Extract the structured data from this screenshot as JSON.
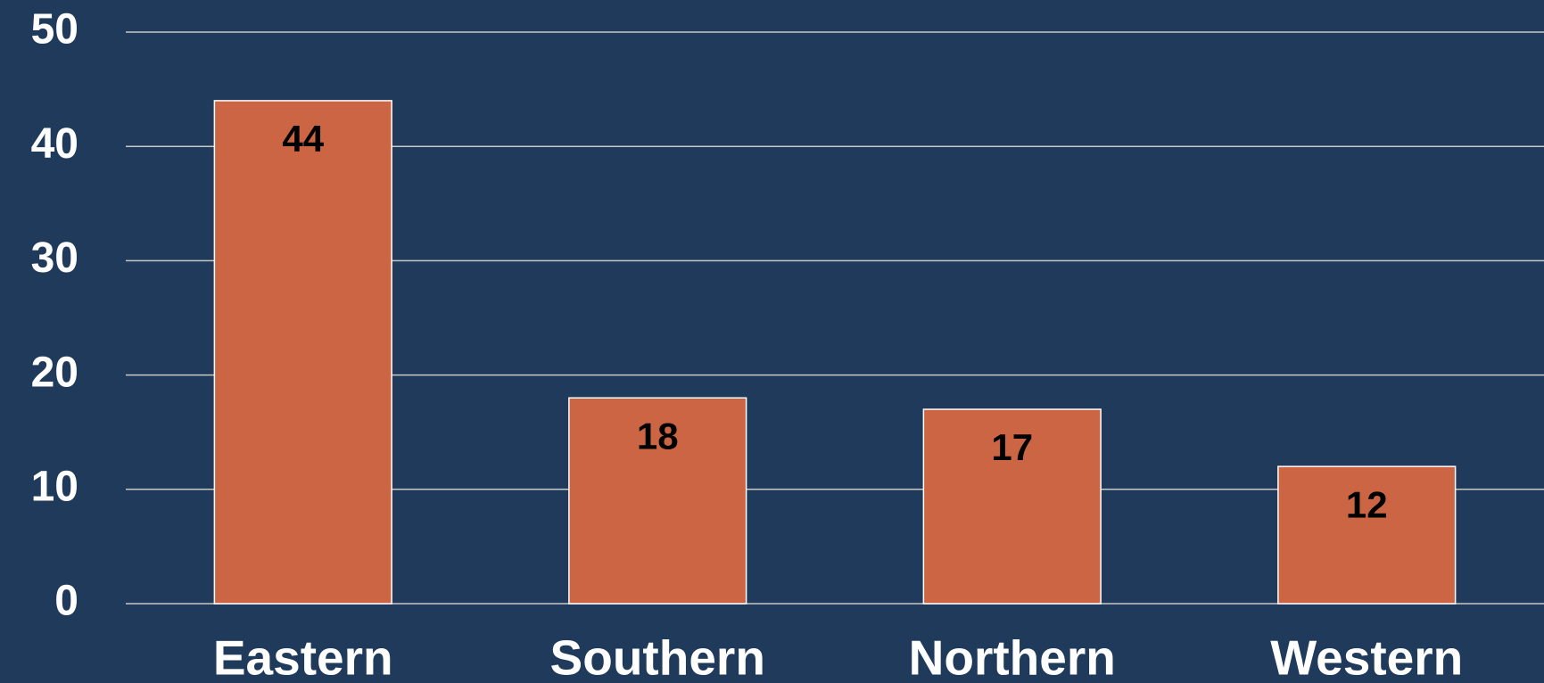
{
  "chart_data": {
    "type": "bar",
    "categories": [
      "Eastern",
      "Southern",
      "Northern",
      "Western"
    ],
    "values": [
      44,
      18,
      17,
      12
    ],
    "color": "#cc6544",
    "ylim": [
      0,
      50
    ],
    "yticks": [
      0,
      10,
      20,
      30,
      40,
      50
    ],
    "grid": true
  }
}
